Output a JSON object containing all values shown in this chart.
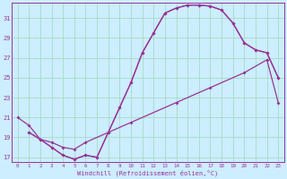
{
  "xlabel": "Windchill (Refroidissement éolien,°C)",
  "bg_color": "#cceeff",
  "line_color": "#993399",
  "grid_color": "#aaddcc",
  "xlim": [
    -0.5,
    23.5
  ],
  "ylim": [
    16.5,
    32.5
  ],
  "yticks": [
    17,
    19,
    21,
    23,
    25,
    27,
    29,
    31
  ],
  "xticks": [
    0,
    1,
    2,
    3,
    4,
    5,
    6,
    7,
    8,
    9,
    10,
    11,
    12,
    13,
    14,
    15,
    16,
    17,
    18,
    19,
    20,
    21,
    22,
    23
  ],
  "line1_x": [
    0,
    1,
    2,
    3,
    4,
    5,
    6,
    7,
    8,
    9,
    10,
    11,
    12,
    13,
    14,
    15,
    16,
    17,
    18,
    19,
    20,
    21,
    22,
    23
  ],
  "line1_y": [
    21.0,
    20.2,
    18.8,
    18.0,
    17.2,
    16.8,
    17.2,
    17.0,
    19.5,
    22.0,
    24.5,
    27.5,
    29.5,
    31.5,
    32.0,
    32.3,
    32.3,
    32.2,
    31.8,
    30.5,
    28.5,
    27.8,
    27.5,
    25.0
  ],
  "line2_x": [
    1,
    2,
    3,
    4,
    5,
    6,
    7,
    8,
    9,
    10,
    11,
    12,
    13,
    14,
    15,
    16,
    17,
    18,
    19,
    20,
    21,
    22,
    23
  ],
  "line2_y": [
    19.5,
    18.8,
    18.0,
    17.2,
    16.8,
    17.2,
    17.0,
    19.5,
    22.0,
    24.5,
    27.5,
    29.5,
    31.5,
    32.0,
    32.3,
    32.3,
    32.2,
    31.8,
    30.5,
    28.5,
    27.8,
    27.5,
    25.0
  ],
  "line3_x": [
    1,
    2,
    3,
    4,
    5,
    6,
    10,
    14,
    17,
    20,
    22,
    23
  ],
  "line3_y": [
    19.5,
    18.8,
    18.5,
    18.0,
    17.8,
    18.5,
    20.5,
    22.5,
    24.0,
    25.5,
    26.8,
    22.5
  ]
}
